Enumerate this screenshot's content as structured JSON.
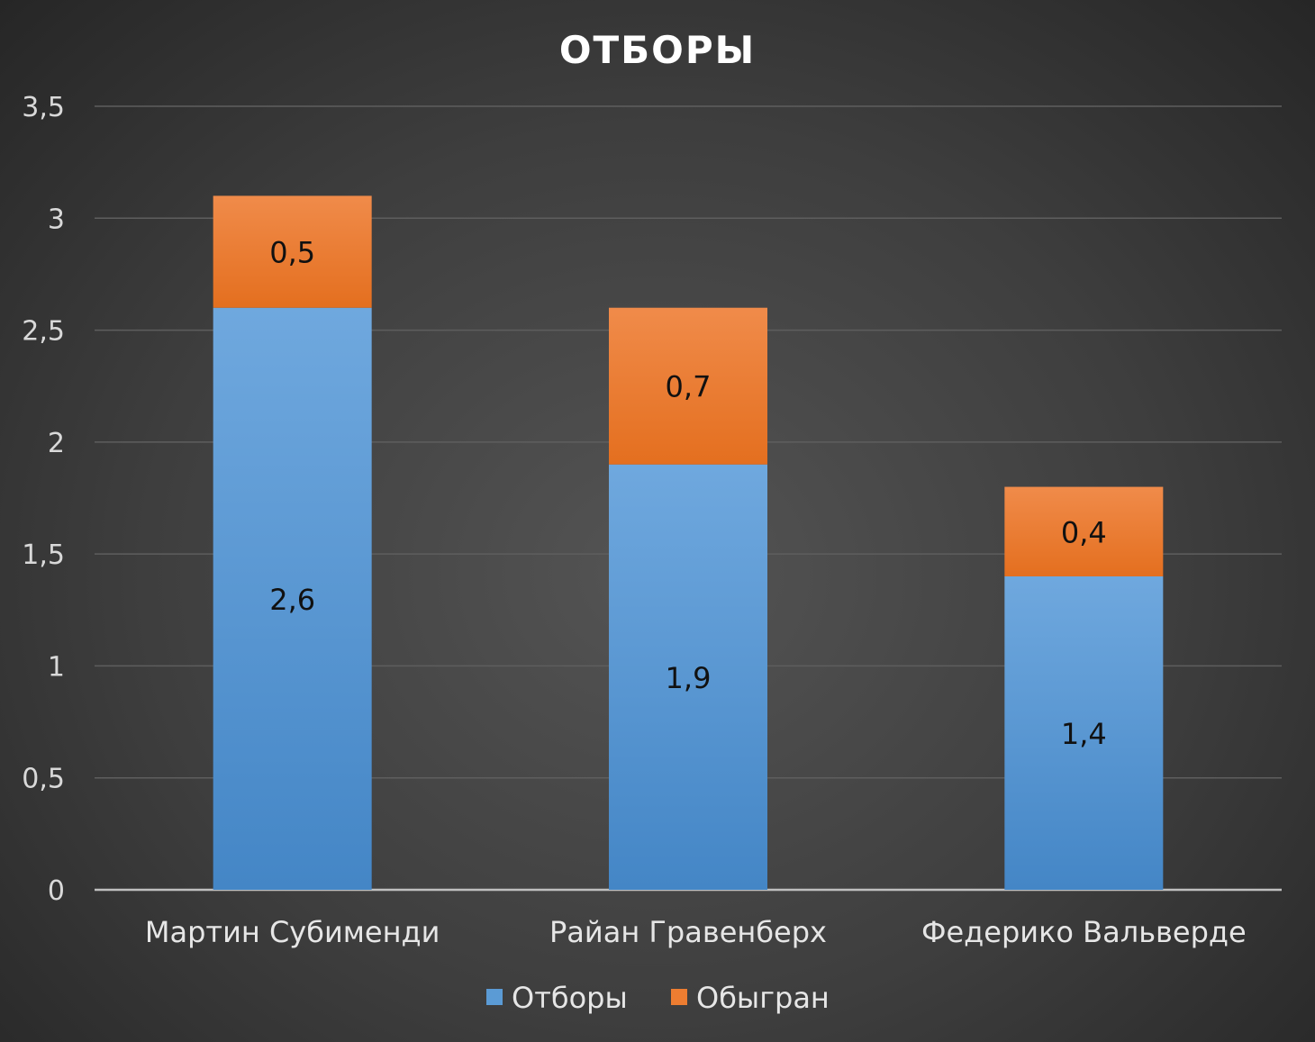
{
  "chart_data": {
    "type": "bar",
    "stacked": true,
    "title": "ОТБОРЫ",
    "categories": [
      "Мартин Субименди",
      "Райан Гравенберх",
      "Федерико Вальверде"
    ],
    "series": [
      {
        "name": "Отборы",
        "values": [
          2.6,
          1.9,
          1.4
        ],
        "labels": [
          "2,6",
          "1,9",
          "1,4"
        ],
        "color": "#5b9bd5"
      },
      {
        "name": "Обыгран",
        "values": [
          0.5,
          0.7,
          0.4
        ],
        "labels": [
          "0,5",
          "0,7",
          "0,4"
        ],
        "color": "#ed7d31"
      }
    ],
    "ylim": [
      0,
      3.5
    ],
    "yticks": [
      0,
      0.5,
      1,
      1.5,
      2,
      2.5,
      3,
      3.5
    ],
    "ytick_labels": [
      "0",
      "0,5",
      "1",
      "1,5",
      "2",
      "2,5",
      "3",
      "3,5"
    ],
    "grid": true,
    "legend_position": "bottom"
  }
}
